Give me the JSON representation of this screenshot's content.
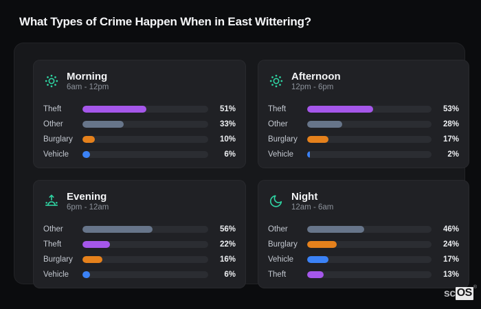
{
  "page": {
    "title": "What Types of Crime Happen When in East Wittering?"
  },
  "logo": {
    "prefix": "sc",
    "suffix": "OS",
    "registered": "®"
  },
  "colors": {
    "accent_icon_teal": "#2fd3a2",
    "theft_purple": "#a557ea",
    "other_slate": "#67758a",
    "burglary_orange": "#e5811c",
    "vehicle_blue": "#3b82f6",
    "panel_bg": "#17181b",
    "card_bg": "#202125",
    "track_bg": "#2b2d32",
    "page_bg": "#0b0c0e"
  },
  "chart_data": [
    {
      "type": "bar",
      "title": "Morning",
      "subtitle": "6am - 12pm",
      "icon": "sun",
      "categories": [
        "Theft",
        "Other",
        "Burglary",
        "Vehicle"
      ],
      "values": [
        51,
        33,
        10,
        6
      ],
      "value_labels": [
        "51%",
        "33%",
        "10%",
        "6%"
      ],
      "bar_colors": [
        "#a557ea",
        "#67758a",
        "#e5811c",
        "#3b82f6"
      ],
      "xlim": [
        0,
        100
      ]
    },
    {
      "type": "bar",
      "title": "Afternoon",
      "subtitle": "12pm - 6pm",
      "icon": "sun",
      "categories": [
        "Theft",
        "Other",
        "Burglary",
        "Vehicle"
      ],
      "values": [
        53,
        28,
        17,
        2
      ],
      "value_labels": [
        "53%",
        "28%",
        "17%",
        "2%"
      ],
      "bar_colors": [
        "#a557ea",
        "#67758a",
        "#e5811c",
        "#3b82f6"
      ],
      "xlim": [
        0,
        100
      ]
    },
    {
      "type": "bar",
      "title": "Evening",
      "subtitle": "6pm - 12am",
      "icon": "sunrise",
      "categories": [
        "Other",
        "Theft",
        "Burglary",
        "Vehicle"
      ],
      "values": [
        56,
        22,
        16,
        6
      ],
      "value_labels": [
        "56%",
        "22%",
        "16%",
        "6%"
      ],
      "bar_colors": [
        "#67758a",
        "#a557ea",
        "#e5811c",
        "#3b82f6"
      ],
      "xlim": [
        0,
        100
      ]
    },
    {
      "type": "bar",
      "title": "Night",
      "subtitle": "12am - 6am",
      "icon": "moon",
      "categories": [
        "Other",
        "Burglary",
        "Vehicle",
        "Theft"
      ],
      "values": [
        46,
        24,
        17,
        13
      ],
      "value_labels": [
        "46%",
        "24%",
        "17%",
        "13%"
      ],
      "bar_colors": [
        "#67758a",
        "#e5811c",
        "#3b82f6",
        "#a557ea"
      ],
      "xlim": [
        0,
        100
      ]
    }
  ]
}
